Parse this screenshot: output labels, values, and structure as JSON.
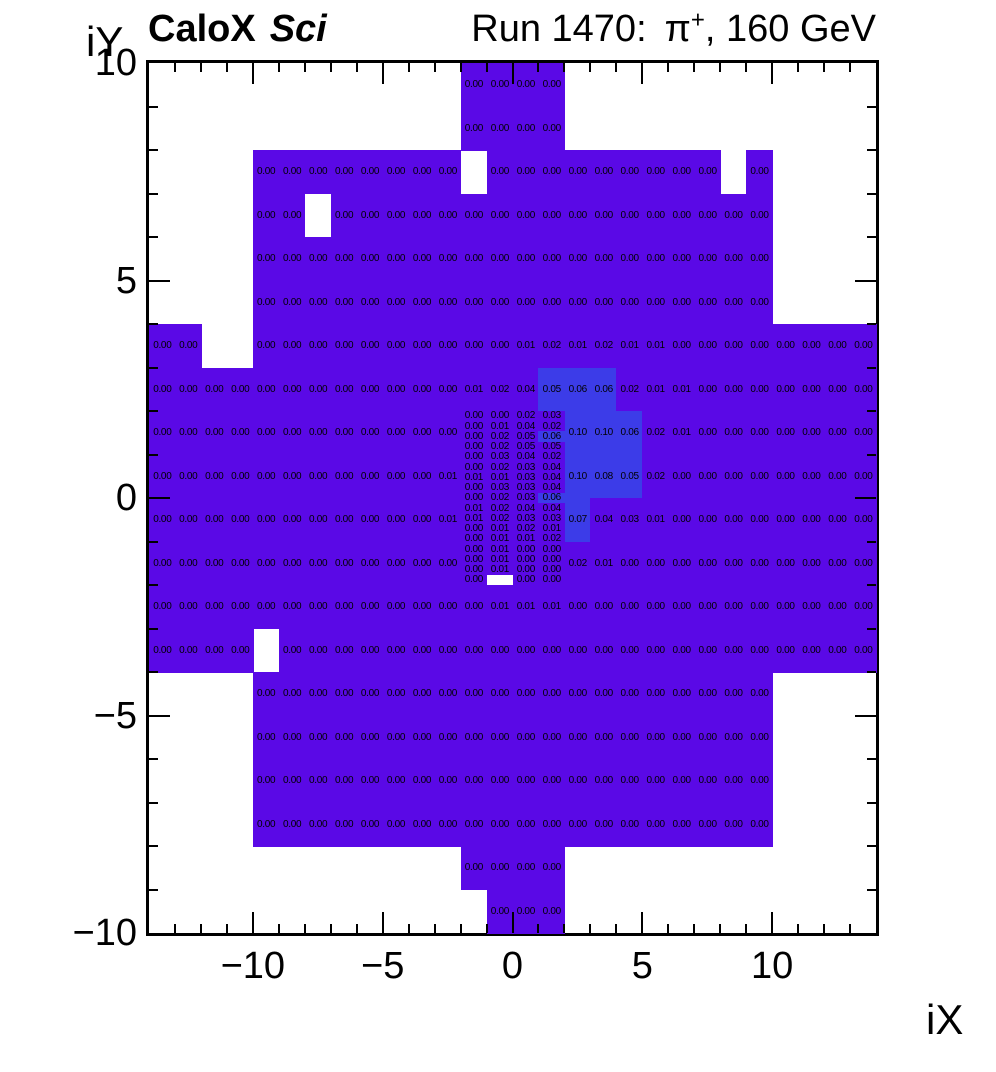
{
  "header": {
    "brand": "CaloX",
    "brand_sub": "Sci",
    "run_label": "Run 1470:",
    "beam_pi": "π",
    "beam_charge": "+",
    "beam_rest": ", 160 GeV"
  },
  "chart_data": {
    "type": "heatmap",
    "title_left": "CaloX Sci",
    "title_right": "Run 1470: π+, 160 GeV",
    "xlabel": "iX",
    "ylabel": "iY",
    "xlim": [
      -14,
      14
    ],
    "ylim": [
      -10,
      10
    ],
    "x_ticks": [
      -10,
      -5,
      0,
      5,
      10
    ],
    "y_ticks": [
      -10,
      -5,
      0,
      5,
      10
    ],
    "minor_tick_step": 1,
    "grid": false,
    "legend": "none",
    "colors": {
      "base": "#5a09e6",
      "hot": "#3c3ce8",
      "empty": "#ffffff",
      "frame": "#000000",
      "text": "#000000",
      "background": "#ffffff"
    },
    "coarse_rows": [
      {
        "iy": 9,
        "segments": [
          {
            "ix0": -2,
            "values": [
              "0.00",
              "0.00",
              "0.00",
              "0.00"
            ]
          }
        ]
      },
      {
        "iy": 8,
        "segments": [
          {
            "ix0": -2,
            "values": [
              "0.00",
              "0.00",
              "0.00",
              "0.00"
            ]
          }
        ]
      },
      {
        "iy": 7,
        "segments": [
          {
            "ix0": -10,
            "values": [
              "0.00",
              "0.00",
              "0.00",
              "0.00",
              "0.00",
              "0.00",
              "0.00",
              "0.00",
              null,
              "0.00",
              "0.00",
              "0.00",
              "0.00",
              "0.00",
              "0.00",
              "0.00",
              "0.00",
              "0.00",
              null,
              "0.00"
            ]
          }
        ]
      },
      {
        "iy": 6,
        "segments": [
          {
            "ix0": -10,
            "values": [
              "0.00",
              "0.00",
              null,
              "0.00",
              "0.00",
              "0.00",
              "0.00",
              "0.00",
              "0.00",
              "0.00",
              "0.00",
              "0.00",
              "0.00",
              "0.00",
              "0.00",
              "0.00",
              "0.00",
              "0.00",
              "0.00",
              "0.00"
            ]
          }
        ]
      },
      {
        "iy": 5,
        "segments": [
          {
            "ix0": -10,
            "values": [
              "0.00",
              "0.00",
              "0.00",
              "0.00",
              "0.00",
              "0.00",
              "0.00",
              "0.00",
              "0.00",
              "0.00",
              "0.00",
              "0.00",
              "0.00",
              "0.00",
              "0.00",
              "0.00",
              "0.00",
              "0.00",
              "0.00",
              "0.00"
            ]
          }
        ]
      },
      {
        "iy": 4,
        "segments": [
          {
            "ix0": -10,
            "values": [
              "0.00",
              "0.00",
              "0.00",
              "0.00",
              "0.00",
              "0.00",
              "0.00",
              "0.00",
              "0.00",
              "0.00",
              "0.00",
              "0.00",
              "0.00",
              "0.00",
              "0.00",
              "0.00",
              "0.00",
              "0.00",
              "0.00",
              "0.00"
            ]
          }
        ]
      },
      {
        "iy": 3,
        "segments": [
          {
            "ix0": -14,
            "values": [
              "0.00",
              "0.00",
              null,
              null,
              "0.00",
              "0.00",
              "0.00",
              "0.00",
              "0.00",
              "0.00",
              "0.00",
              "0.00",
              "0.00",
              "0.00",
              "0.01",
              "0.02",
              "0.01",
              "0.02",
              "0.01",
              "0.01",
              "0.00",
              "0.00",
              "0.00",
              "0.00",
              "0.00",
              "0.00",
              "0.00",
              "0.00"
            ]
          }
        ]
      },
      {
        "iy": 2,
        "segments": [
          {
            "ix0": -14,
            "values": [
              "0.00",
              "0.00",
              "0.00",
              "0.00",
              "0.00",
              "0.00",
              "0.00",
              "0.00",
              "0.00",
              "0.00",
              "0.00",
              "0.00",
              "0.01",
              "0.02",
              "0.04",
              "0.05",
              "0.06",
              "0.06",
              "0.02",
              "0.01",
              "0.01",
              "0.00",
              "0.00",
              "0.00",
              "0.00",
              "0.00",
              "0.00",
              "0.00"
            ]
          }
        ]
      },
      {
        "iy": 1,
        "segments": [
          {
            "ix0": -14,
            "values": [
              "0.00",
              "0.00",
              "0.00",
              "0.00",
              "0.00",
              "0.00",
              "0.00",
              "0.00",
              "0.00",
              "0.00",
              "0.00",
              "0.00"
            ]
          },
          {
            "ix0": 2,
            "values": [
              "0.10",
              "0.10",
              "0.06",
              "0.02",
              "0.01",
              "0.00",
              "0.00",
              "0.00",
              "0.00",
              "0.00",
              "0.00",
              "0.00"
            ]
          }
        ]
      },
      {
        "iy": 0,
        "segments": [
          {
            "ix0": -14,
            "values": [
              "0.00",
              "0.00",
              "0.00",
              "0.00",
              "0.00",
              "0.00",
              "0.00",
              "0.00",
              "0.00",
              "0.00",
              "0.00",
              "0.01"
            ]
          },
          {
            "ix0": 2,
            "values": [
              "0.10",
              "0.08",
              "0.05",
              "0.02",
              "0.00",
              "0.00",
              "0.00",
              "0.00",
              "0.00",
              "0.00",
              "0.00",
              "0.00"
            ]
          }
        ]
      },
      {
        "iy": -1,
        "segments": [
          {
            "ix0": -14,
            "values": [
              "0.00",
              "0.00",
              "0.00",
              "0.00",
              "0.00",
              "0.00",
              "0.00",
              "0.00",
              "0.00",
              "0.00",
              "0.00",
              "0.01"
            ]
          },
          {
            "ix0": 2,
            "values": [
              "0.07",
              "0.04",
              "0.03",
              "0.01",
              "0.00",
              "0.00",
              "0.00",
              "0.00",
              "0.00",
              "0.00",
              "0.00",
              "0.00"
            ]
          }
        ]
      },
      {
        "iy": -2,
        "segments": [
          {
            "ix0": -14,
            "values": [
              "0.00",
              "0.00",
              "0.00",
              "0.00",
              "0.00",
              "0.00",
              "0.00",
              "0.00",
              "0.00",
              "0.00",
              "0.00",
              "0.00"
            ]
          },
          {
            "ix0": 2,
            "values": [
              "0.02",
              "0.01",
              "0.00",
              "0.00",
              "0.00",
              "0.00",
              "0.00",
              "0.00",
              "0.00",
              "0.00",
              "0.00",
              "0.00"
            ]
          }
        ]
      },
      {
        "iy": -3,
        "segments": [
          {
            "ix0": -14,
            "values": [
              "0.00",
              "0.00",
              "0.00",
              "0.00",
              "0.00",
              "0.00",
              "0.00",
              "0.00",
              "0.00",
              "0.00",
              "0.00",
              "0.00",
              "0.00",
              "0.01",
              "0.01",
              "0.01",
              "0.00",
              "0.00",
              "0.00",
              "0.00",
              "0.00",
              "0.00",
              "0.00",
              "0.00",
              "0.00",
              "0.00",
              "0.00",
              "0.00"
            ]
          }
        ]
      },
      {
        "iy": -4,
        "segments": [
          {
            "ix0": -14,
            "values": [
              "0.00",
              "0.00",
              "0.00",
              "0.00",
              null,
              "0.00",
              "0.00",
              "0.00",
              "0.00",
              "0.00",
              "0.00",
              "0.00",
              "0.00",
              "0.00",
              "0.00",
              "0.00",
              "0.00",
              "0.00",
              "0.00",
              "0.00",
              "0.00",
              "0.00",
              "0.00",
              "0.00",
              "0.00",
              "0.00",
              "0.00",
              "0.00"
            ]
          }
        ]
      },
      {
        "iy": -5,
        "segments": [
          {
            "ix0": -10,
            "values": [
              "0.00",
              "0.00",
              "0.00",
              "0.00",
              "0.00",
              "0.00",
              "0.00",
              "0.00",
              "0.00",
              "0.00",
              "0.00",
              "0.00",
              "0.00",
              "0.00",
              "0.00",
              "0.00",
              "0.00",
              "0.00",
              "0.00",
              "0.00"
            ]
          }
        ]
      },
      {
        "iy": -6,
        "segments": [
          {
            "ix0": -10,
            "values": [
              "0.00",
              "0.00",
              "0.00",
              "0.00",
              "0.00",
              "0.00",
              "0.00",
              "0.00",
              "0.00",
              "0.00",
              "0.00",
              "0.00",
              "0.00",
              "0.00",
              "0.00",
              "0.00",
              "0.00",
              "0.00",
              "0.00",
              "0.00"
            ]
          }
        ]
      },
      {
        "iy": -7,
        "segments": [
          {
            "ix0": -10,
            "values": [
              "0.00",
              "0.00",
              "0.00",
              "0.00",
              "0.00",
              "0.00",
              "0.00",
              "0.00",
              "0.00",
              "0.00",
              "0.00",
              "0.00",
              "0.00",
              "0.00",
              "0.00",
              "0.00",
              "0.00",
              "0.00",
              "0.00",
              "0.00"
            ]
          }
        ]
      },
      {
        "iy": -8,
        "segments": [
          {
            "ix0": -10,
            "values": [
              "0.00",
              "0.00",
              "0.00",
              "0.00",
              "0.00",
              "0.00",
              "0.00",
              "0.00",
              "0.00",
              "0.00",
              "0.00",
              "0.00",
              "0.00",
              "0.00",
              "0.00",
              "0.00",
              "0.00",
              "0.00",
              "0.00",
              "0.00"
            ]
          }
        ]
      },
      {
        "iy": -9,
        "segments": [
          {
            "ix0": -2,
            "values": [
              "0.00",
              "0.00",
              "0.00",
              "0.00"
            ]
          }
        ]
      },
      {
        "iy": -10,
        "segments": [
          {
            "ix0": -1,
            "values": [
              "0.00",
              "0.00",
              "0.00"
            ]
          }
        ]
      }
    ],
    "hot_cells": [
      [
        1,
        2
      ],
      [
        2,
        2
      ],
      [
        3,
        2
      ],
      [
        2,
        1
      ],
      [
        3,
        1
      ],
      [
        4,
        1
      ],
      [
        2,
        0
      ],
      [
        3,
        0
      ],
      [
        4,
        0
      ],
      [
        2,
        -1
      ]
    ],
    "fine_region": {
      "ix0": -2,
      "ix1": 2,
      "iy0": -2,
      "iy1": 2,
      "n_cols": 4,
      "n_rows": 17,
      "values": [
        [
          "0.00",
          "0.00",
          "0.02",
          "0.03"
        ],
        [
          "0.00",
          "0.01",
          "0.04",
          "0.02"
        ],
        [
          "0.00",
          "0.02",
          "0.05",
          "0.06"
        ],
        [
          "0.00",
          "0.02",
          "0.05",
          "0.05"
        ],
        [
          "0.00",
          "0.03",
          "0.04",
          "0.02"
        ],
        [
          "0.00",
          "0.02",
          "0.03",
          "0.04"
        ],
        [
          "0.01",
          "0.01",
          "0.03",
          "0.04"
        ],
        [
          "0.00",
          "0.03",
          "0.03",
          "0.04"
        ],
        [
          "0.00",
          "0.02",
          "0.03",
          "0.06"
        ],
        [
          "0.01",
          "0.02",
          "0.04",
          "0.04"
        ],
        [
          "0.01",
          "0.02",
          "0.03",
          "0.03"
        ],
        [
          "0.00",
          "0.01",
          "0.02",
          "0.01"
        ],
        [
          "0.00",
          "0.01",
          "0.01",
          "0.02"
        ],
        [
          "0.00",
          "0.01",
          "0.00",
          "0.00"
        ],
        [
          "0.00",
          "0.01",
          "0.00",
          "0.00"
        ],
        [
          "0.00",
          "0.01",
          "0.00",
          "0.00"
        ],
        [
          "0.00",
          null,
          "0.00",
          "0.00"
        ]
      ],
      "empty_cells": [
        [
          16,
          1
        ]
      ],
      "hot_cells": [
        [
          2,
          3
        ],
        [
          8,
          3
        ]
      ]
    }
  }
}
